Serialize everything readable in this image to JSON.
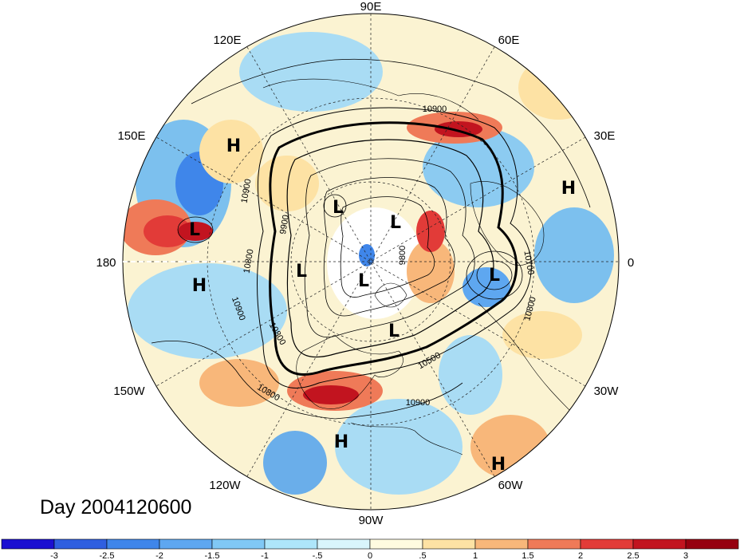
{
  "map": {
    "title": "Day 2004120600",
    "longitude_labels": [
      "90E",
      "60E",
      "30E",
      "0",
      "30W",
      "60W",
      "90W",
      "120W",
      "150W",
      "180",
      "150E",
      "120E"
    ],
    "pressure_centers": [
      {
        "type": "H"
      },
      {
        "type": "L"
      },
      {
        "type": "H"
      },
      {
        "type": "L"
      },
      {
        "type": "L"
      },
      {
        "type": "L"
      },
      {
        "type": "L"
      },
      {
        "type": "L"
      },
      {
        "type": "H"
      },
      {
        "type": "L"
      },
      {
        "type": "H"
      },
      {
        "type": "H"
      }
    ],
    "contour_labels": [
      "10900",
      "10900",
      "9900",
      "10800",
      "10900",
      "10800",
      "10800",
      "10500",
      "10700",
      "10800",
      "9800",
      "10900"
    ]
  },
  "colorbar": {
    "ticks": [
      "-3",
      "-2.5",
      "-2",
      "-1.5",
      "-1",
      "-.5",
      "0",
      ".5",
      "1",
      "1.5",
      "2",
      "2.5",
      "3"
    ],
    "colors": [
      "#1b0fd1",
      "#2f5fe0",
      "#3f86ea",
      "#5ea7f0",
      "#80c8f5",
      "#aee6fa",
      "#d9f5fc",
      "#fffbe0",
      "#fde2a4",
      "#f8b77a",
      "#ef7a58",
      "#e23b38",
      "#c2141f",
      "#96000f"
    ]
  }
}
